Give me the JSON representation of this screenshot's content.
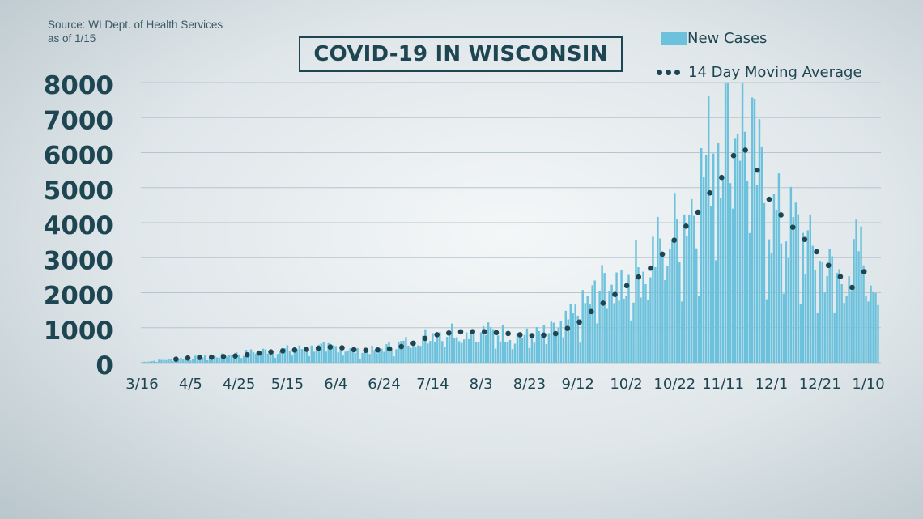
{
  "source_lines": [
    "Source: WI Dept. of Health Services",
    "as of 1/15"
  ],
  "legend": {
    "bar_label": "New Cases",
    "line_label": "14 Day Moving Average"
  },
  "colors": {
    "bars": "#6cc2dd",
    "moving_average": "#1e4552",
    "axis_text": "#1e4552",
    "grid": "#b8c5cb"
  },
  "chart_data": {
    "type": "bar",
    "title": "COVID-19 IN WISCONSIN",
    "xlabel": "",
    "ylabel": "",
    "ylim": [
      0,
      8000
    ],
    "y_ticks": [
      0,
      1000,
      2000,
      3000,
      4000,
      5000,
      6000,
      7000,
      8000
    ],
    "x_tick_labels": [
      "3/16",
      "4/5",
      "4/25",
      "5/15",
      "6/4",
      "6/24",
      "7/14",
      "8/3",
      "8/23",
      "9/12",
      "10/2",
      "10/22",
      "11/11",
      "12/1",
      "12/21",
      "1/10"
    ],
    "grid": true,
    "legend_position": "top-right",
    "series": [
      {
        "name": "New Cases",
        "type": "bar",
        "x_start": "3/16",
        "frequency": "daily",
        "key_points": [
          [
            "3/16",
            20
          ],
          [
            "3/26",
            90
          ],
          [
            "4/5",
            150
          ],
          [
            "4/15",
            170
          ],
          [
            "4/25",
            260
          ],
          [
            "5/5",
            340
          ],
          [
            "5/15",
            380
          ],
          [
            "5/25",
            420
          ],
          [
            "6/4",
            460
          ],
          [
            "6/14",
            300
          ],
          [
            "6/24",
            420
          ],
          [
            "7/4",
            600
          ],
          [
            "7/14",
            850
          ],
          [
            "7/24",
            950
          ],
          [
            "8/3",
            900
          ],
          [
            "8/13",
            850
          ],
          [
            "8/23",
            750
          ],
          [
            "9/2",
            900
          ],
          [
            "9/12",
            1400
          ],
          [
            "9/22",
            2200
          ],
          [
            "10/2",
            2400
          ],
          [
            "10/12",
            3000
          ],
          [
            "10/22",
            3800
          ],
          [
            "11/1",
            5000
          ],
          [
            "11/6",
            6200
          ],
          [
            "11/11",
            7200
          ],
          [
            "11/15",
            7800
          ],
          [
            "11/21",
            6400
          ],
          [
            "12/1",
            4200
          ],
          [
            "12/11",
            3800
          ],
          [
            "12/21",
            2800
          ],
          [
            "12/31",
            2400
          ],
          [
            "1/6",
            3300
          ],
          [
            "1/10",
            2500
          ],
          [
            "1/14",
            2400
          ]
        ]
      },
      {
        "name": "14 Day Moving Average",
        "type": "line",
        "style": "dotted",
        "values": [
          [
            "3/30",
            100
          ],
          [
            "4/5",
            140
          ],
          [
            "4/15",
            160
          ],
          [
            "4/25",
            200
          ],
          [
            "5/5",
            290
          ],
          [
            "5/15",
            350
          ],
          [
            "5/25",
            390
          ],
          [
            "6/4",
            460
          ],
          [
            "6/14",
            350
          ],
          [
            "6/24",
            370
          ],
          [
            "7/4",
            500
          ],
          [
            "7/14",
            780
          ],
          [
            "7/24",
            880
          ],
          [
            "8/3",
            890
          ],
          [
            "8/13",
            840
          ],
          [
            "8/23",
            770
          ],
          [
            "9/2",
            800
          ],
          [
            "9/12",
            1100
          ],
          [
            "9/22",
            1700
          ],
          [
            "10/2",
            2200
          ],
          [
            "10/12",
            2700
          ],
          [
            "10/22",
            3500
          ],
          [
            "11/1",
            4300
          ],
          [
            "11/11",
            5400
          ],
          [
            "11/18",
            6300
          ],
          [
            "11/25",
            5500
          ],
          [
            "12/1",
            4500
          ],
          [
            "12/11",
            3800
          ],
          [
            "12/21",
            3100
          ],
          [
            "12/31",
            2300
          ],
          [
            "1/3",
            2150
          ],
          [
            "1/8",
            2600
          ],
          [
            "1/12",
            2550
          ]
        ]
      }
    ]
  }
}
